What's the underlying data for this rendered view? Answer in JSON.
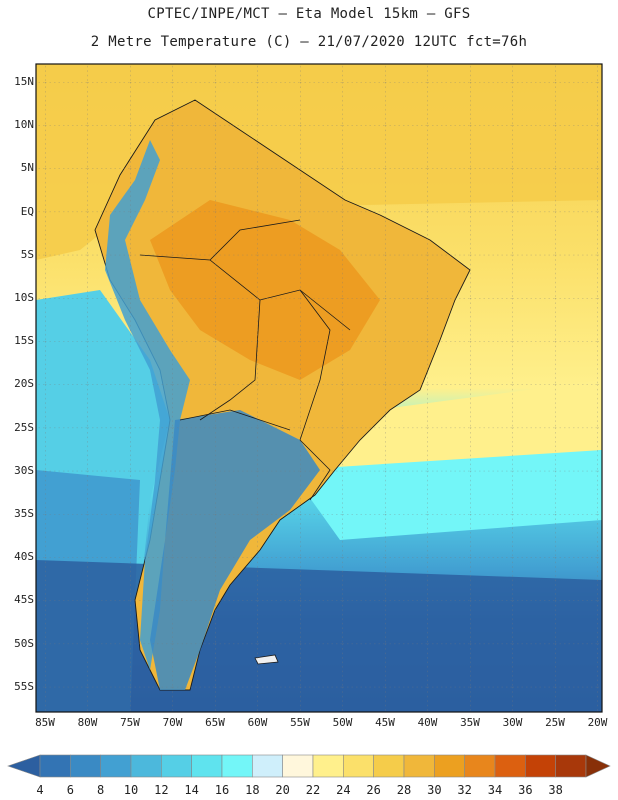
{
  "header": {
    "line1": "CPTEC/INPE/MCT –  Eta Model 15km – GFS",
    "line2": "2 Metre Temperature (C) – 21/07/2020 12UTC fct=76h"
  },
  "lat_labels": [
    "15N",
    "10N",
    "5N",
    "EQ",
    "5S",
    "10S",
    "15S",
    "20S",
    "25S",
    "30S",
    "35S",
    "40S",
    "45S",
    "50S",
    "55S"
  ],
  "lon_labels": [
    "85W",
    "80W",
    "75W",
    "70W",
    "65W",
    "60W",
    "55W",
    "50W",
    "45W",
    "40W",
    "35W",
    "30W",
    "25W",
    "20W"
  ],
  "colorbar": {
    "labels": [
      "4",
      "6",
      "8",
      "10",
      "12",
      "14",
      "16",
      "18",
      "20",
      "22",
      "24",
      "26",
      "28",
      "30",
      "32",
      "34",
      "36",
      "38"
    ],
    "colors": [
      "#2c5fa0",
      "#3374b4",
      "#3a8ac4",
      "#42a0d2",
      "#4cb8dc",
      "#55cfe6",
      "#5fe3ee",
      "#73f6f8",
      "#cfeffb",
      "#fff7dc",
      "#fff08c",
      "#fbe06a",
      "#f5cc4a",
      "#f0b73a",
      "#ecA020",
      "#e8861c",
      "#dc6010",
      "#c44206",
      "#a8380a",
      "#883008"
    ]
  },
  "map": {
    "region": "South America",
    "colors": {
      "ocean_cold": "#2c5fa0",
      "ocean_cool": "#4cb8dc",
      "ocean_mild": "#73f6f8",
      "ocean_warm": "#fbe06a",
      "land_hot": "#ec9a20",
      "land_warm": "#f0b73a",
      "andes": "#42a0d2",
      "border": "#1a1a1a"
    }
  }
}
